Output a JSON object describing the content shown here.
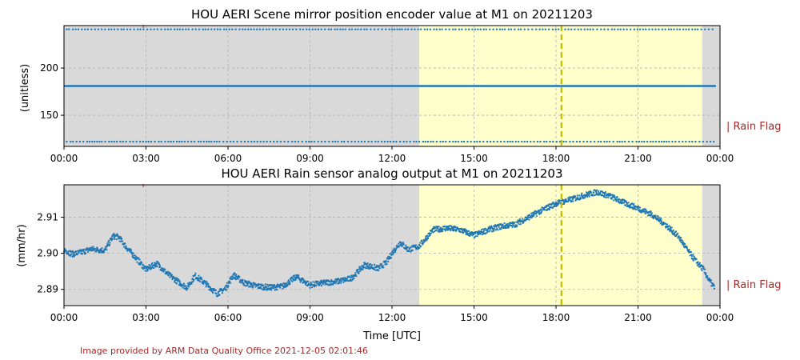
{
  "figure": {
    "credit": "Image provided by ARM Data Quality Office 2021-12-05 02:01:46",
    "rain_flag_label": "| Rain Flag",
    "colors": {
      "background_shade": "#d9d9d9",
      "flag_shade": "#ffffcc",
      "series": "#1f77b4",
      "marker_line": "#bfbf00",
      "rain_flag": "#a52a2a"
    }
  },
  "chart_data": [
    {
      "type": "scatter",
      "title": "HOU AERI Scene mirror position encoder value at M1 on 20211203",
      "xlabel": "",
      "ylabel": "(unitless)",
      "x_range_hours": [
        0,
        24
      ],
      "x_ticks": [
        "00:00",
        "03:00",
        "06:00",
        "09:00",
        "12:00",
        "15:00",
        "18:00",
        "21:00",
        "00:00"
      ],
      "ylim": [
        117,
        245
      ],
      "y_ticks": [
        150,
        200
      ],
      "grid": true,
      "shaded_interval_hours": [
        13.0,
        23.35
      ],
      "vertical_marker_hour": 18.2,
      "series": [
        {
          "kind": "dotted-level",
          "y": 241,
          "x_start": 0.1,
          "x_end": 23.8
        },
        {
          "kind": "solid-level",
          "y": 181,
          "x_start": 0.0,
          "x_end": 23.85
        },
        {
          "kind": "dotted-level",
          "y": 122,
          "x_start": 0.1,
          "x_end": 23.8
        }
      ]
    },
    {
      "type": "scatter",
      "title": "HOU AERI Rain sensor analog output at M1 on 20211203",
      "xlabel": "Time [UTC]",
      "ylabel": "(mm/hr)",
      "x_range_hours": [
        0,
        24
      ],
      "x_ticks": [
        "00:00",
        "03:00",
        "06:00",
        "09:00",
        "12:00",
        "15:00",
        "18:00",
        "21:00",
        "00:00"
      ],
      "ylim": [
        2.8855,
        2.919
      ],
      "y_ticks": [
        2.89,
        2.9,
        2.91
      ],
      "grid": true,
      "shaded_interval_hours": [
        13.0,
        23.35
      ],
      "vertical_marker_hour": 18.2,
      "series": [
        {
          "kind": "noisy-trace",
          "x": [
            0.0,
            0.3,
            0.6,
            1.0,
            1.5,
            1.8,
            2.0,
            2.3,
            2.6,
            3.0,
            3.4,
            3.8,
            4.2,
            4.5,
            4.8,
            5.2,
            5.6,
            5.9,
            6.2,
            6.6,
            7.0,
            7.5,
            8.0,
            8.5,
            9.0,
            9.5,
            10.0,
            10.5,
            11.0,
            11.5,
            11.8,
            12.0,
            12.3,
            12.6,
            13.0,
            13.5,
            14.0,
            14.5,
            15.0,
            15.5,
            16.0,
            16.5,
            17.0,
            17.5,
            18.0,
            18.5,
            19.0,
            19.5,
            20.0,
            20.5,
            21.0,
            21.5,
            22.0,
            22.5,
            22.8,
            23.1,
            23.4,
            23.6,
            23.8
          ],
          "y": [
            2.901,
            2.8998,
            2.9002,
            2.9012,
            2.9008,
            2.9048,
            2.9045,
            2.9015,
            2.899,
            2.8955,
            2.8972,
            2.8942,
            2.892,
            2.8905,
            2.8938,
            2.8915,
            2.8888,
            2.8902,
            2.894,
            2.8918,
            2.891,
            2.8905,
            2.8908,
            2.8935,
            2.8912,
            2.8918,
            2.8922,
            2.893,
            2.8968,
            2.8958,
            2.8975,
            2.9,
            2.903,
            2.901,
            2.902,
            2.9065,
            2.907,
            2.9065,
            2.905,
            2.9065,
            2.9075,
            2.908,
            2.91,
            2.912,
            2.9138,
            2.9148,
            2.916,
            2.917,
            2.9158,
            2.914,
            2.9125,
            2.9108,
            2.908,
            2.9045,
            2.901,
            2.898,
            2.8955,
            2.8925,
            2.8905
          ]
        }
      ]
    }
  ]
}
